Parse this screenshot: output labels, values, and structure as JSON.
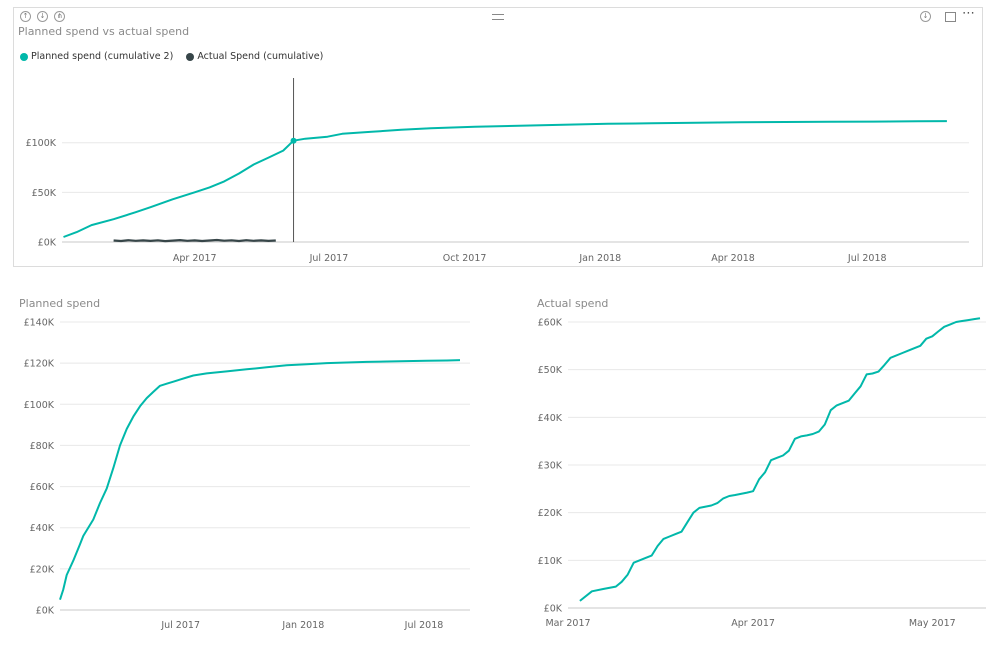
{
  "colors": {
    "planned": "#01B8AA",
    "actual": "#374649",
    "grid": "#e8e8e8",
    "cursor": "#555555"
  },
  "toolbar": {
    "drill_up_icon": "arrow-up-icon",
    "drill_down_icon": "double-arrow-down-icon",
    "expand_icon": "fork-icon",
    "focus_mode_icon": "focus-mode-icon",
    "more_options": "⋯"
  },
  "chart_data": [
    {
      "id": "top",
      "type": "line",
      "title": "Planned spend vs actual spend",
      "legend": [
        "Planned spend (cumulative 2)",
        "Actual Spend (cumulative)"
      ],
      "x_ticks": [
        "Apr 2017",
        "Jul 2017",
        "Oct 2017",
        "Jan 2018",
        "Apr 2018",
        "Jul 2018"
      ],
      "x_tick_days": [
        90,
        181,
        273,
        365,
        455,
        546
      ],
      "x_range": [
        0,
        615
      ],
      "y_ticks": [
        "£0K",
        "£50K",
        "£100K"
      ],
      "y_tick_values": [
        0,
        50000,
        100000
      ],
      "ylim": [
        0,
        145000
      ],
      "cursor_day": 157,
      "cursor_value": 102000,
      "series": [
        {
          "name": "Planned spend (cumulative 2)",
          "x": [
            1,
            10,
            20,
            35,
            50,
            60,
            75,
            90,
            100,
            110,
            120,
            130,
            140,
            150,
            157,
            165,
            180,
            190,
            210,
            230,
            250,
            280,
            310,
            340,
            370,
            400,
            430,
            460,
            490,
            520,
            550,
            580,
            600
          ],
          "y": [
            5000,
            10000,
            17000,
            23000,
            30000,
            35000,
            43000,
            50000,
            55000,
            61000,
            69000,
            78000,
            85000,
            92000,
            102000,
            104000,
            106000,
            109000,
            111000,
            113000,
            114500,
            116000,
            117000,
            118000,
            119000,
            119500,
            120000,
            120500,
            120800,
            121000,
            121200,
            121500,
            121700
          ]
        },
        {
          "name": "Actual Spend (cumulative)",
          "x": [
            35,
            40,
            45,
            50,
            55,
            60,
            65,
            70,
            75,
            80,
            85,
            90,
            95,
            100,
            105,
            110,
            115,
            120,
            125,
            130,
            135,
            140,
            145
          ],
          "y": [
            1500,
            1000,
            1800,
            1200,
            1600,
            1100,
            1700,
            900,
            1400,
            1900,
            1200,
            1600,
            1000,
            1500,
            2000,
            1300,
            1700,
            1000,
            1800,
            1200,
            1600,
            1100,
            1500
          ]
        }
      ]
    },
    {
      "id": "planned",
      "type": "line",
      "title": "Planned spend",
      "x_ticks": [
        "Jul 2017",
        "Jan 2018",
        "Jul 2018"
      ],
      "x_tick_days": [
        181,
        365,
        546
      ],
      "x_range": [
        0,
        615
      ],
      "y_ticks": [
        "£0K",
        "£20K",
        "£40K",
        "£60K",
        "£80K",
        "£100K",
        "£120K",
        "£140K"
      ],
      "y_tick_values": [
        0,
        20000,
        40000,
        60000,
        80000,
        100000,
        120000,
        140000
      ],
      "ylim": [
        0,
        140000
      ],
      "series": [
        {
          "name": "Planned spend",
          "x": [
            0,
            5,
            10,
            20,
            30,
            35,
            50,
            60,
            70,
            80,
            90,
            100,
            110,
            120,
            130,
            140,
            150,
            160,
            170,
            180,
            190,
            200,
            220,
            250,
            280,
            310,
            340,
            370,
            400,
            430,
            460,
            490,
            520,
            550,
            580,
            600
          ],
          "y": [
            5000,
            10000,
            17000,
            24000,
            32000,
            36000,
            44000,
            52000,
            59000,
            69000,
            80000,
            88000,
            94000,
            99000,
            103000,
            106000,
            109000,
            110000,
            111000,
            112000,
            113000,
            114000,
            115000,
            116000,
            117000,
            118000,
            119000,
            119500,
            120000,
            120300,
            120600,
            120800,
            121000,
            121200,
            121300,
            121500
          ]
        }
      ]
    },
    {
      "id": "actual",
      "type": "line",
      "title": "Actual spend",
      "x_ticks": [
        "Mar 2017",
        "Apr 2017",
        "May 2017"
      ],
      "x_tick_days": [
        0,
        31,
        61
      ],
      "x_range": [
        0,
        70
      ],
      "y_ticks": [
        "£0K",
        "£10K",
        "£20K",
        "£30K",
        "£40K",
        "£50K",
        "£60K"
      ],
      "y_tick_values": [
        0,
        10000,
        20000,
        30000,
        40000,
        50000,
        60000
      ],
      "ylim": [
        0,
        60000
      ],
      "series": [
        {
          "name": "Actual spend",
          "x": [
            2,
            4,
            6,
            8,
            9,
            10,
            11,
            12,
            13,
            14,
            15,
            16,
            17,
            18,
            19,
            20,
            21,
            22,
            24,
            25,
            26,
            27,
            28,
            30,
            31,
            32,
            33,
            34,
            35,
            36,
            37,
            38,
            39,
            40,
            41,
            42,
            43,
            44,
            45,
            47,
            48,
            49,
            50,
            51,
            52,
            53,
            54,
            56,
            57,
            58,
            59,
            60,
            61,
            62,
            63,
            64,
            65,
            66,
            67,
            68,
            69
          ],
          "y": [
            1500,
            3500,
            4000,
            4500,
            5500,
            7000,
            9500,
            10000,
            10500,
            11000,
            13000,
            14500,
            15000,
            15500,
            16000,
            18000,
            20000,
            21000,
            21500,
            22000,
            23000,
            23500,
            23700,
            24200,
            24500,
            27000,
            28500,
            31000,
            31500,
            32000,
            33000,
            35500,
            36000,
            36200,
            36500,
            37000,
            38500,
            41500,
            42500,
            43500,
            45000,
            46500,
            49000,
            49200,
            49600,
            51000,
            52500,
            53500,
            54000,
            54500,
            55000,
            56500,
            57000,
            58000,
            59000,
            59500,
            60000,
            60200,
            60400,
            60600,
            60800
          ]
        }
      ]
    }
  ]
}
